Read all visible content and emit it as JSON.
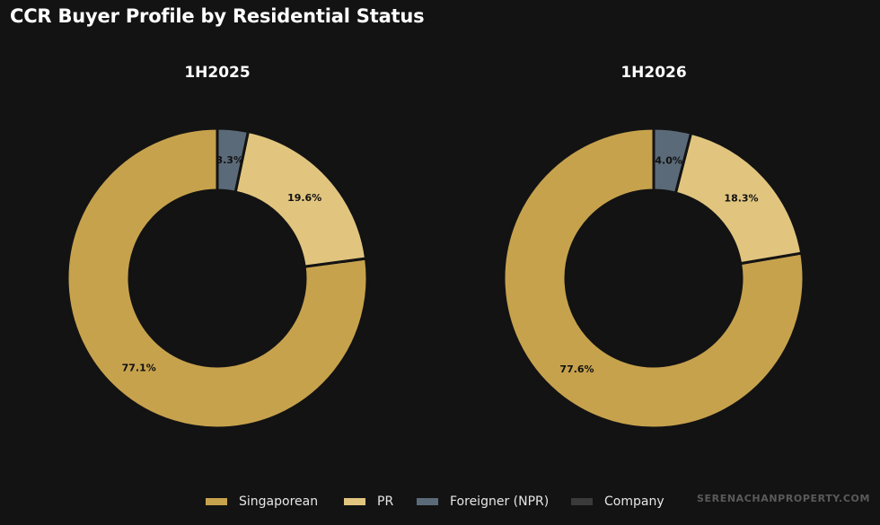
{
  "title": "CCR Buyer Profile by Residential Status",
  "watermark": "SERENACHANPROPERTY.COM",
  "colors": {
    "background": "#131313",
    "Singaporean": "#c7a24d",
    "PR": "#e1c57f",
    "Foreigner (NPR)": "#5b6a78",
    "Company": "#3a3a3a"
  },
  "legend": [
    "Singaporean",
    "PR",
    "Foreigner (NPR)",
    "Company"
  ],
  "chart_data": [
    {
      "type": "pie",
      "subtype": "donut",
      "title": "1H2025",
      "categories": [
        "Singaporean",
        "PR",
        "Foreigner (NPR)",
        "Company"
      ],
      "values": [
        77.1,
        19.6,
        3.3,
        0.0
      ],
      "labels": [
        "77.1%",
        "19.6%",
        "3.3%",
        ""
      ]
    },
    {
      "type": "pie",
      "subtype": "donut",
      "title": "1H2026",
      "categories": [
        "Singaporean",
        "PR",
        "Foreigner (NPR)",
        "Company"
      ],
      "values": [
        77.6,
        18.3,
        4.0,
        0.0
      ],
      "labels": [
        "77.6%",
        "18.3%",
        "4.0%",
        ""
      ]
    }
  ]
}
